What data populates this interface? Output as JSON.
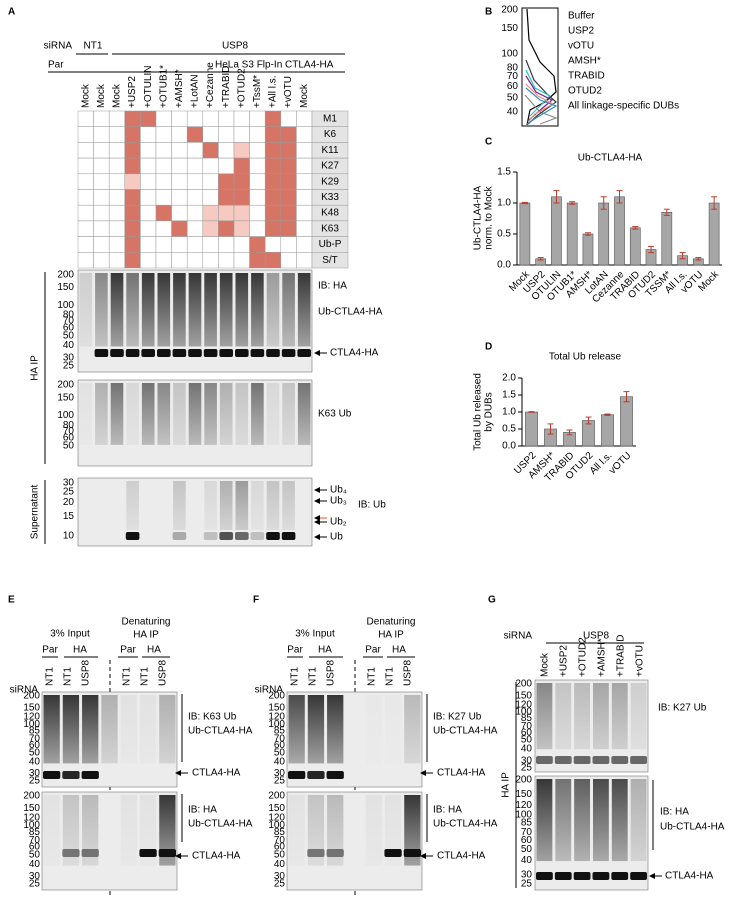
{
  "panel_a": {
    "label": "A",
    "sirna_label": "siRNA",
    "sirna_groups": [
      "NT1",
      "USP8"
    ],
    "par_label": "Par",
    "cell_line": "HeLa S3 Flp-In CTLA4-HA",
    "lanes": [
      "Mock",
      "Mock",
      "Mock",
      "+USP2",
      "+OTULIN",
      "+OTUB1*",
      "+AMSH*",
      "+LotAN",
      "+Cezanne",
      "+TRABID",
      "+OTUD2",
      "+TssM*",
      "+All l.s.",
      "+vOTU",
      "Mock"
    ],
    "linkages": [
      "M1",
      "K6",
      "K11",
      "K27",
      "K29",
      "K33",
      "K48",
      "K63",
      "Ub-P",
      "S/T"
    ],
    "specificity_colors": [
      "#ffffff",
      "#f6c9c1",
      "#d67566"
    ],
    "specificity": [
      [
        0,
        0,
        0,
        2,
        2,
        0,
        0,
        0,
        0,
        0,
        0,
        0,
        2,
        0,
        0
      ],
      [
        0,
        0,
        0,
        2,
        0,
        0,
        0,
        2,
        0,
        0,
        0,
        0,
        2,
        2,
        0
      ],
      [
        0,
        0,
        0,
        2,
        0,
        0,
        0,
        0,
        2,
        0,
        1,
        0,
        2,
        2,
        0
      ],
      [
        0,
        0,
        0,
        2,
        0,
        0,
        0,
        0,
        0,
        0,
        2,
        0,
        2,
        2,
        0
      ],
      [
        0,
        0,
        0,
        1,
        0,
        0,
        0,
        0,
        0,
        2,
        2,
        0,
        2,
        2,
        0
      ],
      [
        0,
        0,
        0,
        2,
        0,
        0,
        0,
        0,
        0,
        2,
        2,
        0,
        2,
        2,
        0
      ],
      [
        0,
        0,
        0,
        2,
        0,
        2,
        0,
        0,
        1,
        1,
        1,
        0,
        2,
        2,
        0
      ],
      [
        0,
        0,
        0,
        2,
        0,
        0,
        2,
        0,
        1,
        2,
        1,
        0,
        2,
        2,
        0
      ],
      [
        0,
        0,
        0,
        2,
        0,
        0,
        0,
        0,
        0,
        0,
        0,
        2,
        0,
        0,
        0
      ],
      [
        0,
        0,
        0,
        2,
        0,
        0,
        0,
        0,
        0,
        0,
        0,
        2,
        2,
        0,
        0
      ]
    ],
    "ip_label": "HA IP",
    "supernatant_label": "Supernatant",
    "blots": [
      {
        "markers": [
          200,
          150,
          100,
          80,
          70,
          60,
          50,
          40,
          30,
          25
        ],
        "labels": [
          "IB: HA",
          "Ub-CTLA4-HA",
          "CTLA4-HA"
        ]
      },
      {
        "markers": [
          200,
          150,
          100,
          80,
          70,
          60,
          50
        ],
        "labels": [
          "K63 Ub"
        ]
      },
      {
        "markers": [
          30,
          25,
          20,
          15,
          10
        ],
        "labels": [
          "Ub₄",
          "Ub₃",
          "Ub₂",
          "Ub",
          "IB: Ub"
        ],
        "label_colors": [
          "#000000",
          "#2e9e3a",
          "#e8501f",
          "#000000",
          "#000000"
        ]
      }
    ]
  },
  "panel_b": {
    "label": "B",
    "markers": [
      200,
      150,
      100,
      80,
      70,
      60,
      50,
      40
    ],
    "legend": [
      {
        "name": "Buffer",
        "color": "#000000"
      },
      {
        "name": "USP2",
        "color": "#8c8c8c"
      },
      {
        "name": "vOTU",
        "color": "#3a3a3a"
      },
      {
        "name": "AMSH*",
        "color": "#1fc7c0"
      },
      {
        "name": "TRABID",
        "color": "#7b1f8c"
      },
      {
        "name": "OTUD2",
        "color": "#f08a7a"
      },
      {
        "name": "All linkage-specific DUBs",
        "color": "#2a8fc8"
      }
    ]
  },
  "chart_data": [
    {
      "type": "bar",
      "panel": "C",
      "title": "Ub-CTLA4-HA",
      "ylabel": [
        "Ub-CTLA4-HA",
        "norm. to Mock"
      ],
      "categories": [
        "Mock",
        "USP2",
        "OTULIN",
        "OTUB1*",
        "AMSH*",
        "LotAN",
        "Cezanne",
        "TRABID",
        "OTUD2",
        "TSSM*",
        "All l.s.",
        "vOTU",
        "Mock"
      ],
      "values": [
        1.0,
        0.1,
        1.1,
        1.0,
        0.5,
        1.0,
        1.1,
        0.6,
        0.25,
        0.85,
        0.15,
        0.1,
        1.0
      ],
      "errors": [
        0.01,
        0.02,
        0.1,
        0.02,
        0.02,
        0.1,
        0.1,
        0.02,
        0.05,
        0.05,
        0.05,
        0.02,
        0.1
      ],
      "color": "#a6a6a6",
      "error_color": "#c0392b",
      "ylim": [
        0,
        1.5
      ],
      "yticks": [
        {
          "value": 0,
          "label": "0.0"
        },
        {
          "value": 0.5,
          "label": "0.5"
        },
        {
          "value": 1,
          "label": "1.0"
        },
        {
          "value": 1.5,
          "label": "1.5"
        }
      ]
    },
    {
      "type": "bar",
      "panel": "D",
      "title": "Total Ub release",
      "ylabel": [
        "Total Ub released",
        "by DUBs"
      ],
      "categories": [
        "USP2",
        "AMSH*",
        "TRABID",
        "OTUD2",
        "All l.s.",
        "vOTU"
      ],
      "values": [
        1.0,
        0.5,
        0.4,
        0.75,
        0.92,
        1.45
      ],
      "errors": [
        0.01,
        0.15,
        0.07,
        0.1,
        0.02,
        0.15
      ],
      "color": "#a6a6a6",
      "error_color": "#c0392b",
      "ylim": [
        0,
        2
      ],
      "yticks": [
        {
          "value": 0,
          "label": "0.0"
        },
        {
          "value": 0.5,
          "label": "0.5"
        },
        {
          "value": 1,
          "label": "1.0"
        },
        {
          "value": 1.5,
          "label": "1.5"
        },
        {
          "value": 2,
          "label": "2.0"
        }
      ]
    }
  ],
  "panel_e": {
    "label": "E",
    "input_label": "3% Input",
    "ip_label": [
      "Denaturing",
      "HA IP"
    ],
    "groups": [
      "Par",
      "HA",
      "Par",
      "HA"
    ],
    "sirna_label": "siRNA",
    "lanes": [
      "NT1",
      "NT1",
      "USP8",
      "NT1",
      "NT1",
      "USP8"
    ],
    "blots": [
      {
        "markers": [
          200,
          150,
          120,
          100,
          85,
          70,
          60,
          50,
          40,
          30,
          25
        ],
        "labels": [
          "IB: K63 Ub",
          "Ub-CTLA4-HA",
          "CTLA4-HA"
        ]
      },
      {
        "markers": [
          200,
          150,
          120,
          100,
          85,
          70,
          60,
          50,
          40,
          30,
          25
        ],
        "labels": [
          "IB: HA",
          "Ub-CTLA4-HA",
          "CTLA4-HA"
        ]
      }
    ]
  },
  "panel_f": {
    "label": "F",
    "input_label": "3% Input",
    "ip_label": [
      "Denaturing",
      "HA IP"
    ],
    "groups": [
      "Par",
      "HA",
      "Par",
      "HA"
    ],
    "sirna_label": "siRNA",
    "lanes": [
      "NT1",
      "NT1",
      "USP8",
      "NT1",
      "NT1",
      "USP8"
    ],
    "blots": [
      {
        "markers": [
          200,
          150,
          120,
          100,
          85,
          70,
          60,
          50,
          40,
          30,
          25
        ],
        "labels": [
          "IB: K27 Ub",
          "Ub-CTLA4-HA",
          "CTLA4-HA"
        ]
      },
      {
        "markers": [
          200,
          150,
          120,
          100,
          85,
          70,
          60,
          50,
          40,
          30,
          25
        ],
        "labels": [
          "IB: HA",
          "Ub-CTLA4-HA",
          "CTLA4-HA"
        ]
      }
    ]
  },
  "panel_g": {
    "label": "G",
    "sirna_label": "siRNA",
    "sirna_group": "USP8",
    "lanes": [
      "Mock",
      "+USP2",
      "+OTUD2",
      "+AMSH*",
      "+TRABID",
      "+vOTU"
    ],
    "ip_label": "HA IP",
    "blots": [
      {
        "markers": [
          200,
          150,
          120,
          100,
          85,
          70,
          60,
          50,
          40,
          30,
          25
        ],
        "labels": [
          "IB: K27 Ub"
        ]
      },
      {
        "markers": [
          200,
          150,
          120,
          100,
          85,
          70,
          60,
          50,
          40,
          30,
          25
        ],
        "labels": [
          "IB: HA",
          "Ub-CTLA4-HA",
          "CTLA4-HA"
        ]
      }
    ]
  }
}
